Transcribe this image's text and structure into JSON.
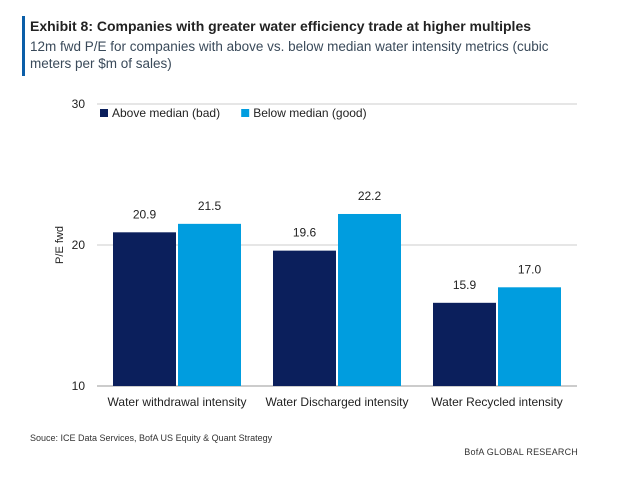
{
  "header": {
    "title": "Exhibit 8: Companies with greater water efficiency trade at higher multiples",
    "subtitle": "12m fwd P/E for companies with above vs. below median water intensity metrics (cubic meters per $m of sales)"
  },
  "footer": {
    "source": "Souce: ICE Data Services, BofA US Equity & Quant Strategy",
    "brand": "BofA GLOBAL RESEARCH"
  },
  "colors": {
    "accent": "#0b5ea8",
    "above_median": "#0b1f5c",
    "below_median": "#009ddf",
    "grid": "#cccccc"
  },
  "chart_data": {
    "type": "bar",
    "categories": [
      "Water withdrawal intensity",
      "Water Discharged intensity",
      "Water Recycled intensity"
    ],
    "series": [
      {
        "name": "Above median (bad)",
        "values": [
          20.9,
          19.6,
          15.9
        ]
      },
      {
        "name": "Below median (good)",
        "values": [
          21.5,
          22.2,
          17.0
        ]
      }
    ],
    "ylabel": "P/E fwd",
    "xlabel": "",
    "ylim": [
      10,
      30
    ],
    "yticks": [
      10,
      20,
      30
    ],
    "grid": true,
    "legend": "top-left",
    "data_labels": true
  }
}
